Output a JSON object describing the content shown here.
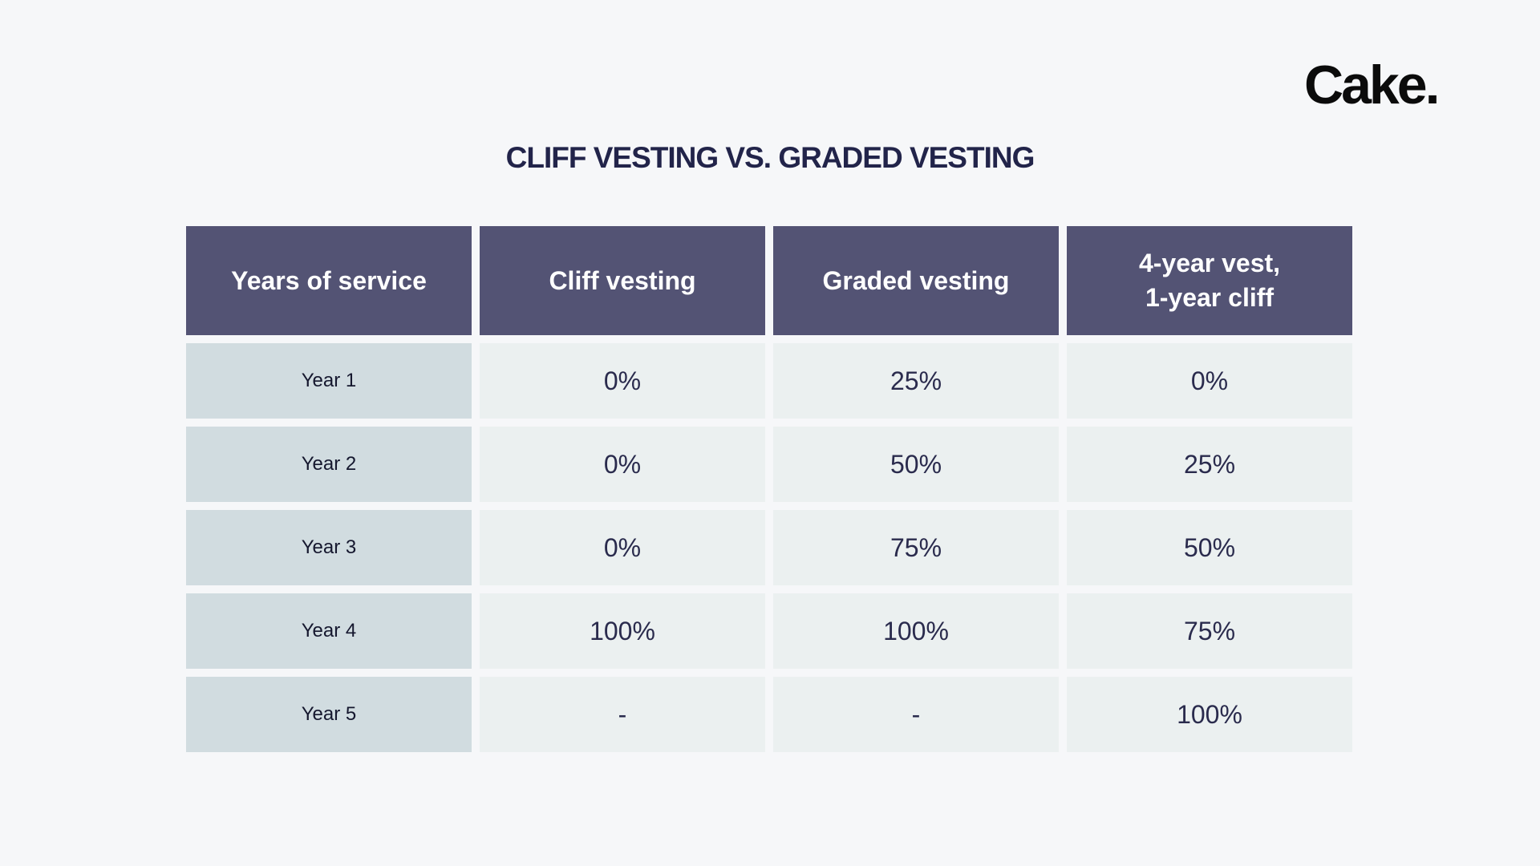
{
  "logo": "Cake.",
  "title": "CLIFF VESTING VS. GRADED VESTING",
  "table": {
    "headers": [
      "Years of service",
      "Cliff vesting",
      "Graded vesting",
      "4-year vest,\n1-year cliff"
    ],
    "rows": [
      {
        "label": "Year 1",
        "cliff": "0%",
        "graded": "25%",
        "four_year": "0%"
      },
      {
        "label": "Year 2",
        "cliff": "0%",
        "graded": "50%",
        "four_year": "25%"
      },
      {
        "label": "Year 3",
        "cliff": "0%",
        "graded": "75%",
        "four_year": "50%"
      },
      {
        "label": "Year 4",
        "cliff": "100%",
        "graded": "100%",
        "four_year": "75%"
      },
      {
        "label": "Year 5",
        "cliff": "-",
        "graded": "-",
        "four_year": "100%"
      }
    ]
  },
  "colors": {
    "header_bg": "#535374",
    "label_bg": "#d1dce0",
    "value_bg": "#ebf0f0",
    "title": "#22244a"
  }
}
